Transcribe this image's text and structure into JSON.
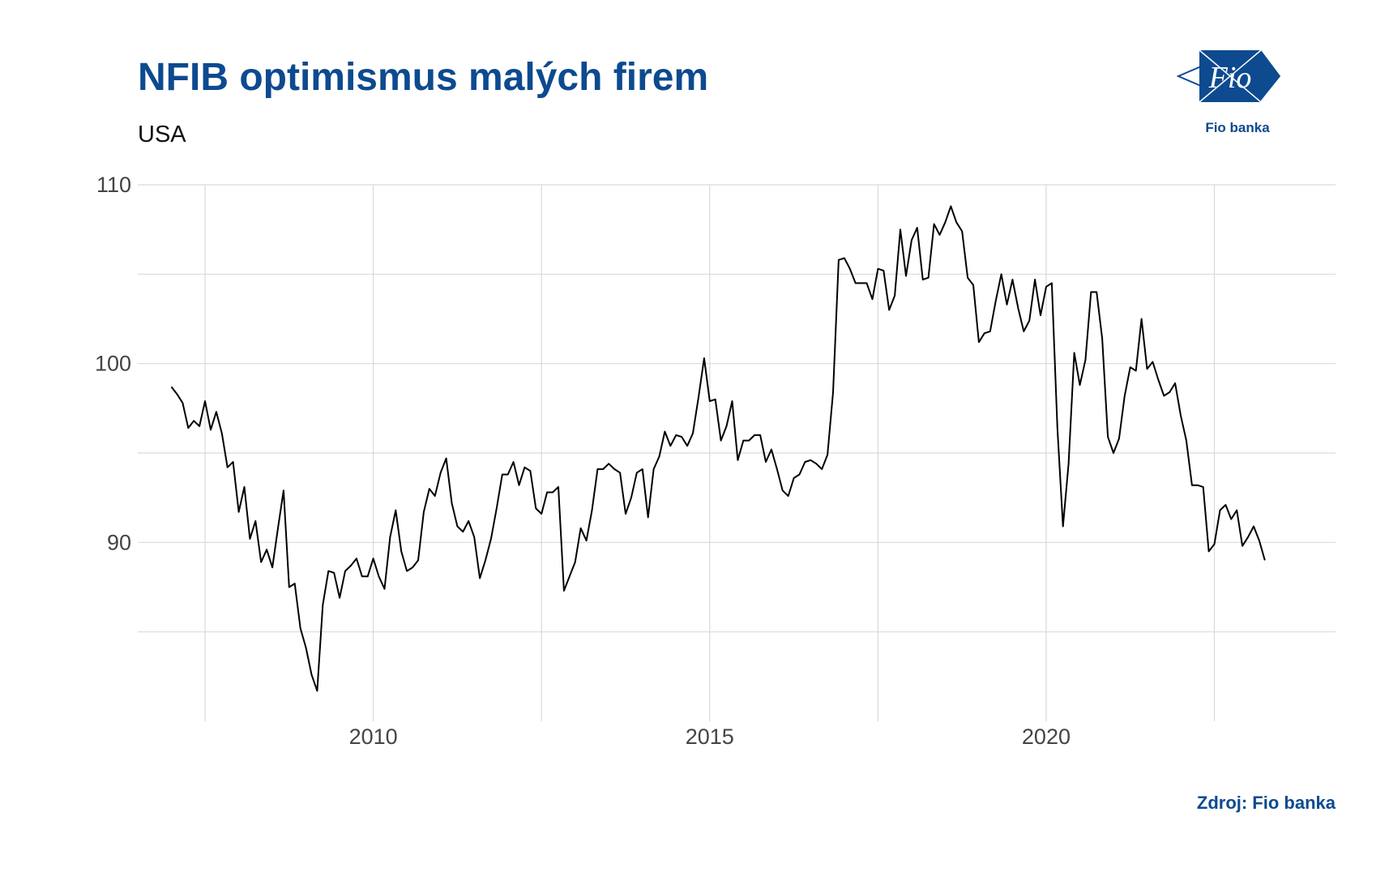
{
  "header": {
    "title": "NFIB optimismus malých firem",
    "subtitle": "USA"
  },
  "logo": {
    "text": "Fio",
    "caption": "Fio banka",
    "icon": "fio-logo-icon"
  },
  "footer": {
    "source": "Zdroj: Fio banka"
  },
  "colors": {
    "brand": "#0d4a8f",
    "line": "#000000",
    "grid": "#d9d9d9"
  },
  "chart_data": {
    "type": "line",
    "title": "NFIB optimismus malých firem",
    "subtitle": "USA",
    "xlabel": "",
    "ylabel": "",
    "xlim": [
      2006.5,
      2024.3
    ],
    "ylim": [
      80.0,
      110.0
    ],
    "x_ticks": [
      2010,
      2015,
      2020
    ],
    "y_ticks": [
      90,
      100,
      110
    ],
    "grid": true,
    "legend": "none",
    "series": [
      {
        "x_start": 2007.0,
        "step": 0.0833333,
        "values": [
          98.7,
          98.3,
          97.8,
          96.4,
          96.8,
          96.5,
          97.9,
          96.3,
          97.3,
          96.1,
          94.2,
          94.5,
          91.7,
          93.1,
          90.2,
          91.2,
          88.9,
          89.6,
          88.6,
          90.8,
          92.9,
          87.5,
          87.7,
          85.2,
          84.1,
          82.6,
          81.7,
          86.5,
          88.4,
          88.3,
          86.9,
          88.4,
          88.7,
          89.1,
          88.1,
          88.1,
          89.1,
          88.1,
          87.4,
          90.3,
          91.8,
          89.5,
          88.4,
          88.6,
          89.0,
          91.7,
          93.0,
          92.6,
          93.9,
          94.7,
          92.2,
          90.9,
          90.6,
          91.2,
          90.3,
          88.0,
          89.0,
          90.2,
          91.9,
          93.8,
          93.8,
          94.5,
          93.2,
          94.2,
          94.0,
          91.9,
          91.6,
          92.8,
          92.8,
          93.1,
          87.3,
          88.1,
          88.9,
          90.8,
          90.1,
          91.8,
          94.1,
          94.1,
          94.4,
          94.1,
          93.9,
          91.6,
          92.5,
          93.9,
          94.1,
          91.4,
          94.1,
          94.8,
          96.2,
          95.4,
          96.0,
          95.9,
          95.4,
          96.1,
          98.1,
          100.3,
          97.9,
          98.0,
          95.7,
          96.5,
          97.9,
          94.6,
          95.7,
          95.7,
          96.0,
          96.0,
          94.5,
          95.2,
          94.1,
          92.9,
          92.6,
          93.6,
          93.8,
          94.5,
          94.6,
          94.4,
          94.1,
          94.9,
          98.4,
          105.8,
          105.9,
          105.3,
          104.5,
          104.5,
          104.5,
          103.6,
          105.3,
          105.2,
          103.0,
          103.8,
          107.5,
          104.9,
          106.9,
          107.6,
          104.7,
          104.8,
          107.8,
          107.2,
          107.9,
          108.8,
          107.9,
          107.4,
          104.8,
          104.4,
          101.2,
          101.7,
          101.8,
          103.5,
          105.0,
          103.3,
          104.7,
          103.1,
          101.8,
          102.4,
          104.7,
          102.7,
          104.3,
          104.5,
          96.4,
          90.9,
          94.4,
          100.6,
          98.8,
          100.2,
          104.0,
          104.0,
          101.4,
          95.9,
          95.0,
          95.8,
          98.2,
          99.8,
          99.6,
          102.5,
          99.7,
          100.1,
          99.1,
          98.2,
          98.4,
          98.9,
          97.1,
          95.7,
          93.2,
          93.2,
          93.1,
          89.5,
          89.9,
          91.8,
          92.1,
          91.3,
          91.8,
          89.8,
          90.3,
          90.9,
          90.1,
          89.0
        ]
      }
    ]
  }
}
